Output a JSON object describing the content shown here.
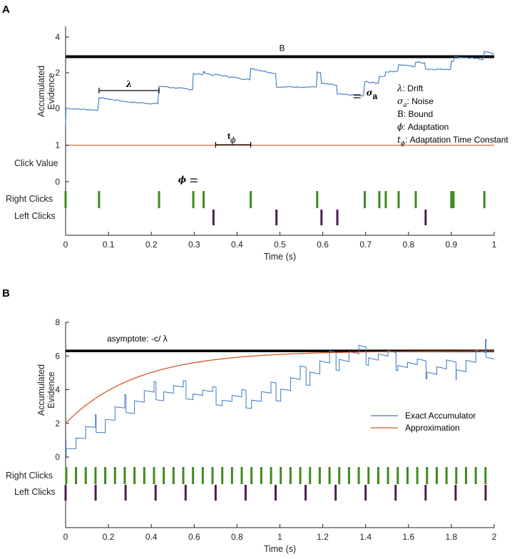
{
  "chart_data": [
    {
      "panel": "A",
      "type": "line",
      "xlabel": "Time (s)",
      "xlim": [
        0,
        1
      ],
      "xticks": [
        "0",
        "0.1",
        "0.2",
        "0.3",
        "0.4",
        "0.5",
        "0.6",
        "0.7",
        "0.8",
        "0.9",
        "1"
      ],
      "evidence": {
        "ylabel_line1": "Accumulated",
        "ylabel_line2": "Evidence",
        "ylim": [
          -1,
          4.6
        ],
        "yticks": [
          "0",
          "2",
          "4"
        ],
        "bound_value": 2.9,
        "bound_label": "B",
        "color": "#3b78c4",
        "series": [
          [
            0,
            -0.9
          ],
          [
            0.001,
            0.0
          ],
          [
            0.075,
            -0.1
          ],
          [
            0.078,
            0.6
          ],
          [
            0.15,
            0.35
          ],
          [
            0.215,
            0.25
          ],
          [
            0.218,
            1.25
          ],
          [
            0.296,
            1.05
          ],
          [
            0.298,
            1.95
          ],
          [
            0.32,
            1.9
          ],
          [
            0.322,
            2.0
          ],
          [
            0.324,
            2.05
          ],
          [
            0.32,
            2.05
          ],
          [
            0.325,
            2.0
          ],
          [
            0.345,
            1.85
          ],
          [
            0.348,
            1.9
          ],
          [
            0.43,
            1.6
          ],
          [
            0.432,
            2.25
          ],
          [
            0.49,
            1.95
          ],
          [
            0.492,
            1.2
          ],
          [
            0.585,
            1.2
          ],
          [
            0.587,
            2.05
          ],
          [
            0.595,
            2.0
          ],
          [
            0.597,
            1.4
          ],
          [
            0.632,
            1.3
          ],
          [
            0.634,
            0.8
          ],
          [
            0.695,
            0.7
          ],
          [
            0.698,
            1.5
          ],
          [
            0.73,
            1.4
          ],
          [
            0.732,
            1.8
          ],
          [
            0.745,
            1.8
          ],
          [
            0.747,
            2.05
          ],
          [
            0.775,
            2.1
          ],
          [
            0.777,
            2.45
          ],
          [
            0.815,
            2.35
          ],
          [
            0.817,
            2.6
          ],
          [
            0.838,
            2.55
          ],
          [
            0.84,
            2.2
          ],
          [
            0.898,
            2.2
          ],
          [
            0.9,
            2.65
          ],
          [
            0.905,
            2.65
          ],
          [
            0.907,
            2.9
          ],
          [
            0.975,
            2.75
          ],
          [
            0.977,
            3.2
          ],
          [
            1.0,
            3.05
          ]
        ]
      },
      "click_value": {
        "ylabel": "Click Value",
        "ylim": [
          -0.1,
          1.15
        ],
        "yticks": [
          "0",
          "1"
        ],
        "color": "#d5582a"
      },
      "right_clicks_label": "Right Clicks",
      "left_clicks_label": "Left Clicks",
      "right_color": "#3f8a1e",
      "left_color": "#4a1f4d",
      "right_clicks": [
        0.0,
        0.078,
        0.218,
        0.298,
        0.322,
        0.432,
        0.587,
        0.698,
        0.732,
        0.747,
        0.777,
        0.817,
        0.9,
        0.905,
        0.977
      ],
      "left_clicks": [
        0.345,
        0.492,
        0.597,
        0.634,
        0.84
      ],
      "annotations": {
        "lambda_symbol": "λ",
        "sigma_symbol": "σ",
        "sigma_sub": "a",
        "phi_symbol": "ϕ",
        "t_symbol": "t",
        "t_sub": "ϕ"
      },
      "legend": [
        {
          "sym": "λ",
          "sub": "",
          "text": ": Drift"
        },
        {
          "sym": "σ",
          "sub": "a",
          "text": ": Noise"
        },
        {
          "sym": "B",
          "sub": "",
          "text": ": Bound"
        },
        {
          "sym": "ϕ",
          "sub": "",
          "text": ": Adaptation"
        },
        {
          "sym": "t",
          "sub": "ϕ",
          "text": ": Adaptation Time Constant"
        }
      ]
    },
    {
      "panel": "B",
      "type": "line",
      "xlabel": "Time (s)",
      "xlim": [
        0,
        2
      ],
      "xticks": [
        "0",
        "0.2",
        "0.4",
        "0.6",
        "0.8",
        "1",
        "1.2",
        "1.4",
        "1.6",
        "1.8",
        "2"
      ],
      "ylabel_line1": "Accumulated",
      "ylabel_line2": "Evidence",
      "ylim": [
        0,
        8
      ],
      "yticks": [
        "0",
        "2",
        "4",
        "6",
        "8"
      ],
      "asymptote_value": 6.3,
      "asymptote_label": "asymptote: -c/ λ",
      "legend": [
        {
          "name": "Exact Accumulator",
          "color": "#3b78c4"
        },
        {
          "name": "Approximation",
          "color": "#d5582a"
        }
      ],
      "approx_start": 2.0,
      "approx_tau": 0.33,
      "right_period_s": 0.0455,
      "left_clicks": [
        0.0,
        0.14,
        0.28,
        0.42,
        0.56,
        0.7,
        0.84,
        0.98,
        1.12,
        1.26,
        1.4,
        1.54,
        1.68,
        1.82,
        1.96
      ],
      "right_clicks_label": "Right Clicks",
      "left_clicks_label": "Left Clicks"
    }
  ],
  "panels": {
    "a": "A",
    "b": "B"
  }
}
